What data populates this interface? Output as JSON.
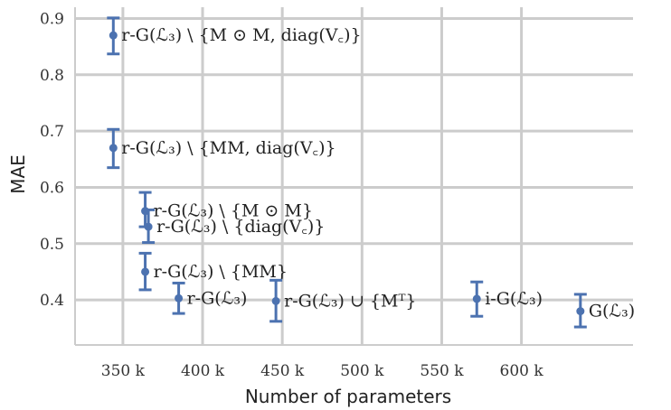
{
  "chart_data": {
    "type": "scatter",
    "title": "",
    "xlabel": "Number of parameters",
    "ylabel": "MAE",
    "xlim": [
      320,
      670
    ],
    "ylim": [
      0.32,
      0.92
    ],
    "xticks": [
      {
        "value": 350,
        "label": "350 k"
      },
      {
        "value": 400,
        "label": "400 k"
      },
      {
        "value": 450,
        "label": "450 k"
      },
      {
        "value": 500,
        "label": "500 k"
      },
      {
        "value": 550,
        "label": "550 k"
      },
      {
        "value": 600,
        "label": "600 k"
      }
    ],
    "yticks": [
      {
        "value": 0.4,
        "label": "0.4"
      },
      {
        "value": 0.5,
        "label": "0.5"
      },
      {
        "value": 0.6,
        "label": "0.6"
      },
      {
        "value": 0.7,
        "label": "0.7"
      },
      {
        "value": 0.8,
        "label": "0.8"
      },
      {
        "value": 0.9,
        "label": "0.9"
      }
    ],
    "grid": true,
    "marker_color": "#4c72b0",
    "points": [
      {
        "x": 344,
        "y": 0.87,
        "err_low": 0.837,
        "err_high": 0.901,
        "label": "r-G(ℒ₃) \\ {M ⊙ M, diag(V꜀)}"
      },
      {
        "x": 344,
        "y": 0.67,
        "err_low": 0.635,
        "err_high": 0.703,
        "label": "r-G(ℒ₃) \\ {MM, diag(V꜀)}"
      },
      {
        "x": 364,
        "y": 0.558,
        "err_low": 0.53,
        "err_high": 0.591,
        "label": "r-G(ℒ₃) \\ {M ⊙ M}"
      },
      {
        "x": 366,
        "y": 0.53,
        "err_low": 0.502,
        "err_high": 0.56,
        "label": "r-G(ℒ₃) \\ {diag(V꜀)}"
      },
      {
        "x": 364,
        "y": 0.45,
        "err_low": 0.418,
        "err_high": 0.483,
        "label": "r-G(ℒ₃) \\ {MM}"
      },
      {
        "x": 385,
        "y": 0.403,
        "err_low": 0.376,
        "err_high": 0.43,
        "label": "r-G(ℒ₃)"
      },
      {
        "x": 446,
        "y": 0.398,
        "err_low": 0.362,
        "err_high": 0.435,
        "label": "r-G(ℒ₃) ∪ {Mᵀ}"
      },
      {
        "x": 572,
        "y": 0.402,
        "err_low": 0.371,
        "err_high": 0.432,
        "label": "i-G(ℒ₃)"
      },
      {
        "x": 637,
        "y": 0.38,
        "err_low": 0.352,
        "err_high": 0.41,
        "label": "G(ℒ₃)"
      }
    ]
  }
}
